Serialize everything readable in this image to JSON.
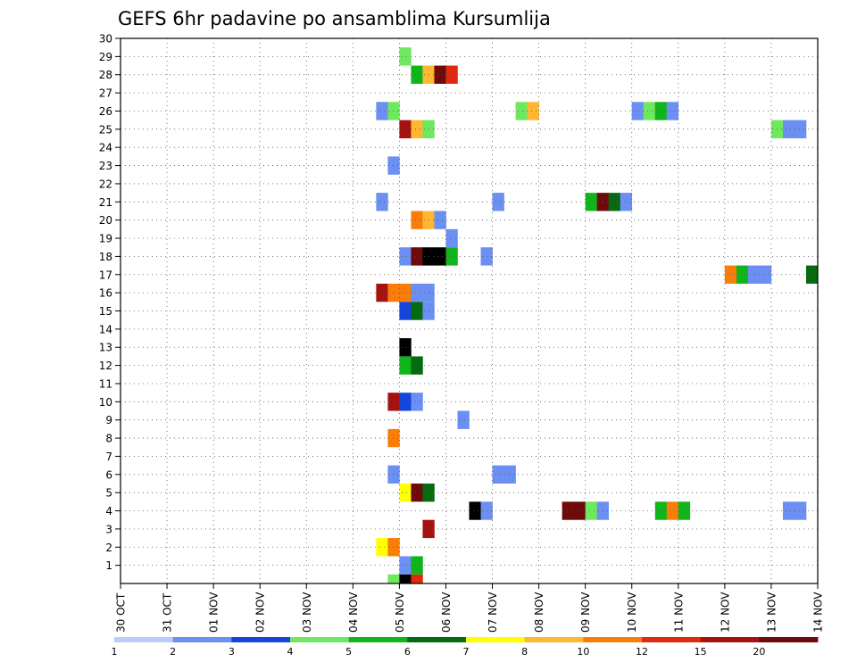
{
  "chart_data": {
    "type": "heatmap",
    "title": "GEFS 6hr padavine po ansamblima Kursumlija",
    "y_ticks": [
      "1",
      "2",
      "3",
      "4",
      "5",
      "6",
      "7",
      "8",
      "9",
      "10",
      "11",
      "12",
      "13",
      "14",
      "15",
      "16",
      "17",
      "18",
      "19",
      "20",
      "21",
      "22",
      "23",
      "24",
      "25",
      "26",
      "27",
      "28",
      "29",
      "30"
    ],
    "ylim": [
      0,
      30
    ],
    "x_ticks": [
      "30 OCT",
      "31 OCT",
      "01 NOV",
      "02 NOV",
      "03 NOV",
      "04 NOV",
      "05 NOV",
      "06 NOV",
      "07 NOV",
      "08 NOV",
      "09 NOV",
      "10 NOV",
      "11 NOV",
      "12 NOV",
      "13 NOV",
      "14 NOV"
    ],
    "xlim": [
      0,
      60
    ],
    "grid": true,
    "colorbar": {
      "bounds": [
        "1",
        "2",
        "3",
        "4",
        "5",
        "6",
        "7",
        "8",
        "10",
        "12",
        "15",
        "20"
      ],
      "colors": [
        "#bccbf9",
        "#6b8ff2",
        "#1446dd",
        "#6ee85e",
        "#0fb51a",
        "#056a10",
        "#ffff00",
        "#ffb631",
        "#f97d09",
        "#e0290f",
        "#a51212",
        "#6e0a0a"
      ]
    },
    "cells": [
      {
        "member": 0,
        "t": 23,
        "v": 3
      },
      {
        "member": 0,
        "t": 24,
        "v": 12
      },
      {
        "member": 0,
        "t": 25,
        "v": 9
      },
      {
        "member": 1,
        "t": 24,
        "v": 1
      },
      {
        "member": 1,
        "t": 25,
        "v": 4
      },
      {
        "member": 2,
        "t": 22,
        "v": 6
      },
      {
        "member": 2,
        "t": 23,
        "v": 8
      },
      {
        "member": 3,
        "t": 26,
        "v": 10
      },
      {
        "member": 4,
        "t": 30,
        "v": 12
      },
      {
        "member": 4,
        "t": 31,
        "v": 1
      },
      {
        "member": 4,
        "t": 38,
        "v": 11
      },
      {
        "member": 4,
        "t": 39,
        "v": 11
      },
      {
        "member": 4,
        "t": 40,
        "v": 3
      },
      {
        "member": 4,
        "t": 41,
        "v": 1
      },
      {
        "member": 4,
        "t": 46,
        "v": 4
      },
      {
        "member": 4,
        "t": 47,
        "v": 8
      },
      {
        "member": 4,
        "t": 48,
        "v": 4
      },
      {
        "member": 4,
        "t": 57,
        "v": 1
      },
      {
        "member": 4,
        "t": 58,
        "v": 1
      },
      {
        "member": 5,
        "t": 24,
        "v": 6
      },
      {
        "member": 5,
        "t": 25,
        "v": 11
      },
      {
        "member": 5,
        "t": 26,
        "v": 5
      },
      {
        "member": 6,
        "t": 23,
        "v": 1
      },
      {
        "member": 6,
        "t": 32,
        "v": 1
      },
      {
        "member": 6,
        "t": 33,
        "v": 1
      },
      {
        "member": 8,
        "t": 23,
        "v": 8
      },
      {
        "member": 9,
        "t": 29,
        "v": 1
      },
      {
        "member": 10,
        "t": 23,
        "v": 10
      },
      {
        "member": 10,
        "t": 24,
        "v": 2
      },
      {
        "member": 10,
        "t": 25,
        "v": 1
      },
      {
        "member": 12,
        "t": 24,
        "v": 4
      },
      {
        "member": 12,
        "t": 25,
        "v": 5
      },
      {
        "member": 13,
        "t": 24,
        "v": 13
      },
      {
        "member": 15,
        "t": 24,
        "v": 2
      },
      {
        "member": 15,
        "t": 25,
        "v": 5
      },
      {
        "member": 15,
        "t": 26,
        "v": 1
      },
      {
        "member": 16,
        "t": 22,
        "v": 10
      },
      {
        "member": 16,
        "t": 23,
        "v": 8
      },
      {
        "member": 16,
        "t": 24,
        "v": 8
      },
      {
        "member": 16,
        "t": 25,
        "v": 1
      },
      {
        "member": 16,
        "t": 26,
        "v": 1
      },
      {
        "member": 17,
        "t": 52,
        "v": 8
      },
      {
        "member": 17,
        "t": 53,
        "v": 4
      },
      {
        "member": 17,
        "t": 54,
        "v": 1
      },
      {
        "member": 17,
        "t": 55,
        "v": 1
      },
      {
        "member": 17,
        "t": 59,
        "v": 5
      },
      {
        "member": 18,
        "t": 24,
        "v": 1
      },
      {
        "member": 18,
        "t": 25,
        "v": 11
      },
      {
        "member": 18,
        "t": 26,
        "v": 13
      },
      {
        "member": 18,
        "t": 27,
        "v": 14
      },
      {
        "member": 18,
        "t": 28,
        "v": 4
      },
      {
        "member": 18,
        "t": 31,
        "v": 1
      },
      {
        "member": 19,
        "t": 28,
        "v": 1
      },
      {
        "member": 20,
        "t": 25,
        "v": 8
      },
      {
        "member": 20,
        "t": 26,
        "v": 7
      },
      {
        "member": 20,
        "t": 27,
        "v": 1
      },
      {
        "member": 21,
        "t": 22,
        "v": 1
      },
      {
        "member": 21,
        "t": 32,
        "v": 1
      },
      {
        "member": 21,
        "t": 40,
        "v": 4
      },
      {
        "member": 21,
        "t": 41,
        "v": 11
      },
      {
        "member": 21,
        "t": 42,
        "v": 5
      },
      {
        "member": 21,
        "t": 43,
        "v": 1
      },
      {
        "member": 23,
        "t": 23,
        "v": 1
      },
      {
        "member": 25,
        "t": 24,
        "v": 10
      },
      {
        "member": 25,
        "t": 25,
        "v": 7
      },
      {
        "member": 25,
        "t": 26,
        "v": 3
      },
      {
        "member": 25,
        "t": 56,
        "v": 3
      },
      {
        "member": 25,
        "t": 57,
        "v": 1
      },
      {
        "member": 25,
        "t": 58,
        "v": 1
      },
      {
        "member": 26,
        "t": 22,
        "v": 1
      },
      {
        "member": 26,
        "t": 23,
        "v": 3
      },
      {
        "member": 26,
        "t": 34,
        "v": 3
      },
      {
        "member": 26,
        "t": 35,
        "v": 7
      },
      {
        "member": 26,
        "t": 44,
        "v": 1
      },
      {
        "member": 26,
        "t": 45,
        "v": 3
      },
      {
        "member": 26,
        "t": 46,
        "v": 4
      },
      {
        "member": 26,
        "t": 47,
        "v": 1
      },
      {
        "member": 28,
        "t": 25,
        "v": 4
      },
      {
        "member": 28,
        "t": 26,
        "v": 7
      },
      {
        "member": 28,
        "t": 27,
        "v": 11
      },
      {
        "member": 28,
        "t": 28,
        "v": 9
      },
      {
        "member": 29,
        "t": 24,
        "v": 3
      }
    ]
  }
}
